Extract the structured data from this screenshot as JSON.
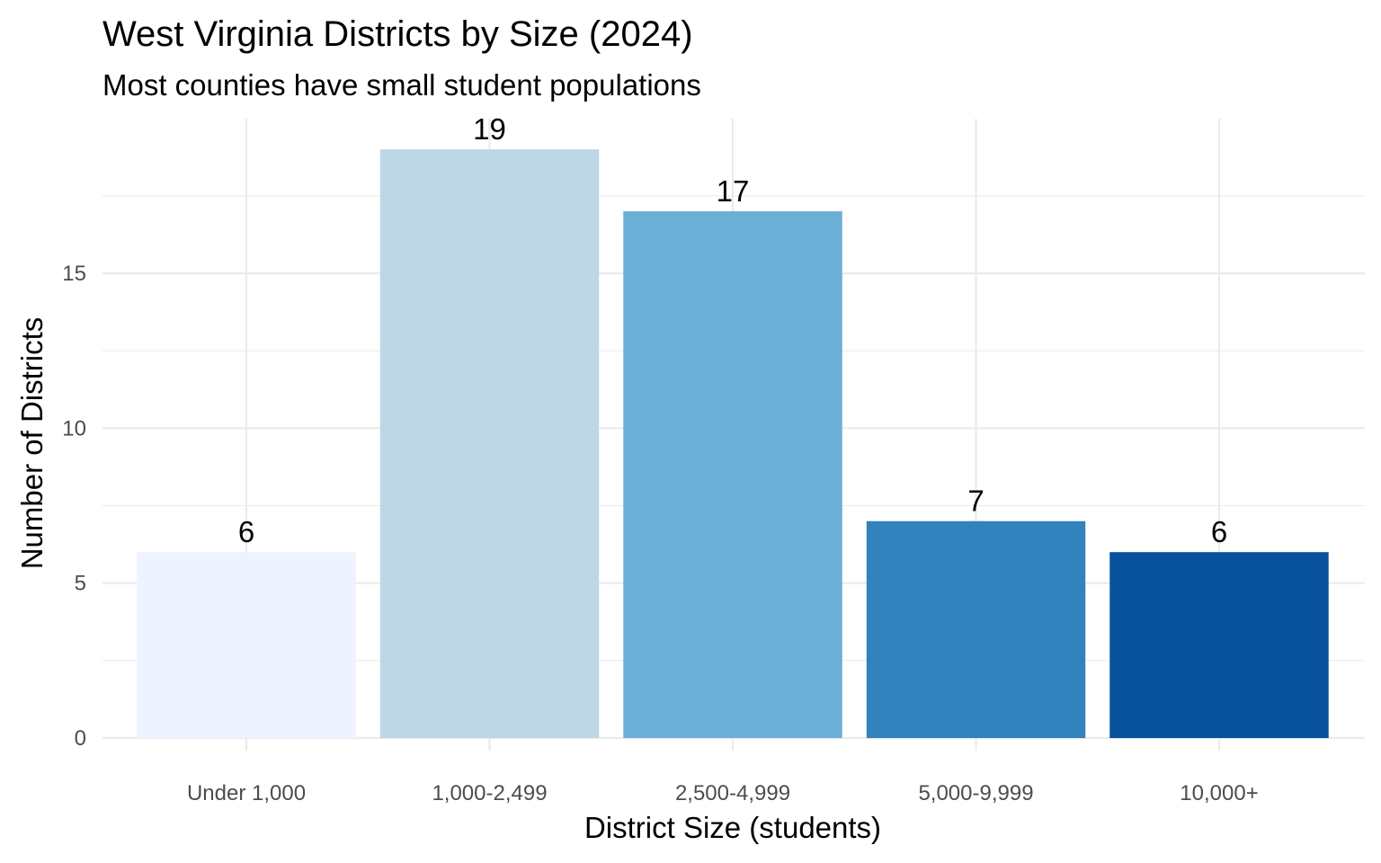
{
  "chart_data": {
    "type": "bar",
    "title": "West Virginia Districts by Size (2024)",
    "subtitle": "Most counties have small student populations",
    "xlabel": "District Size (students)",
    "ylabel": "Number of Districts",
    "categories": [
      "Under 1,000",
      "1,000-2,499",
      "2,500-4,999",
      "5,000-9,999",
      "10,000+"
    ],
    "values": [
      6,
      19,
      17,
      7,
      6
    ],
    "data_labels": [
      "6",
      "19",
      "17",
      "7",
      "6"
    ],
    "colors": [
      "#eff3ff",
      "#bdd7e7",
      "#6baed6",
      "#3182bd",
      "#08519c"
    ],
    "ylim": [
      0,
      19.9
    ],
    "yticks": [
      0,
      5,
      10,
      15
    ],
    "ytick_labels": [
      "0",
      "5",
      "10",
      "15"
    ],
    "grid": true,
    "legend": "none"
  }
}
